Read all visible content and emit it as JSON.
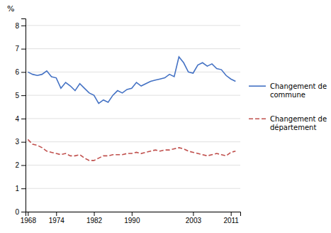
{
  "chart_data": {
    "type": "line",
    "y_label": "%",
    "x": [
      1968,
      1969,
      1970,
      1971,
      1972,
      1973,
      1974,
      1975,
      1976,
      1977,
      1978,
      1979,
      1980,
      1981,
      1982,
      1983,
      1984,
      1985,
      1986,
      1987,
      1988,
      1989,
      1990,
      1991,
      1992,
      1993,
      1994,
      1995,
      1996,
      1997,
      1998,
      1999,
      2000,
      2001,
      2002,
      2003,
      2004,
      2005,
      2006,
      2007,
      2008,
      2009,
      2010,
      2011,
      2012
    ],
    "series": [
      {
        "name": "Changement de\ncommune",
        "color": "#4472C4",
        "line_style": "solid",
        "values": [
          6.0,
          5.9,
          5.85,
          5.9,
          6.05,
          5.8,
          5.75,
          5.3,
          5.55,
          5.4,
          5.2,
          5.5,
          5.3,
          5.1,
          5.0,
          4.65,
          4.8,
          4.7,
          5.0,
          5.2,
          5.1,
          5.25,
          5.3,
          5.55,
          5.4,
          5.5,
          5.6,
          5.65,
          5.7,
          5.75,
          5.9,
          5.8,
          6.65,
          6.4,
          6.0,
          5.95,
          6.3,
          6.4,
          6.25,
          6.35,
          6.15,
          6.1,
          5.85,
          5.7,
          5.6
        ]
      },
      {
        "name": "Changement de\ndépartement",
        "color": "#C0504D",
        "line_style": "dashed",
        "values": [
          3.1,
          2.9,
          2.85,
          2.75,
          2.6,
          2.55,
          2.5,
          2.45,
          2.5,
          2.4,
          2.4,
          2.45,
          2.3,
          2.2,
          2.2,
          2.3,
          2.4,
          2.4,
          2.45,
          2.45,
          2.45,
          2.5,
          2.5,
          2.55,
          2.5,
          2.55,
          2.6,
          2.65,
          2.6,
          2.65,
          2.65,
          2.7,
          2.75,
          2.7,
          2.6,
          2.55,
          2.5,
          2.45,
          2.4,
          2.45,
          2.5,
          2.45,
          2.4,
          2.55,
          2.6
        ]
      }
    ],
    "xlim": [
      1967.5,
      2013
    ],
    "xticks": [
      1968,
      1974,
      1982,
      1990,
      2003,
      2011
    ],
    "ylim": [
      0,
      8.3
    ],
    "yticks": [
      0,
      1,
      2,
      3,
      4,
      5,
      6,
      7,
      8
    ],
    "grid": true,
    "legend": "right"
  }
}
